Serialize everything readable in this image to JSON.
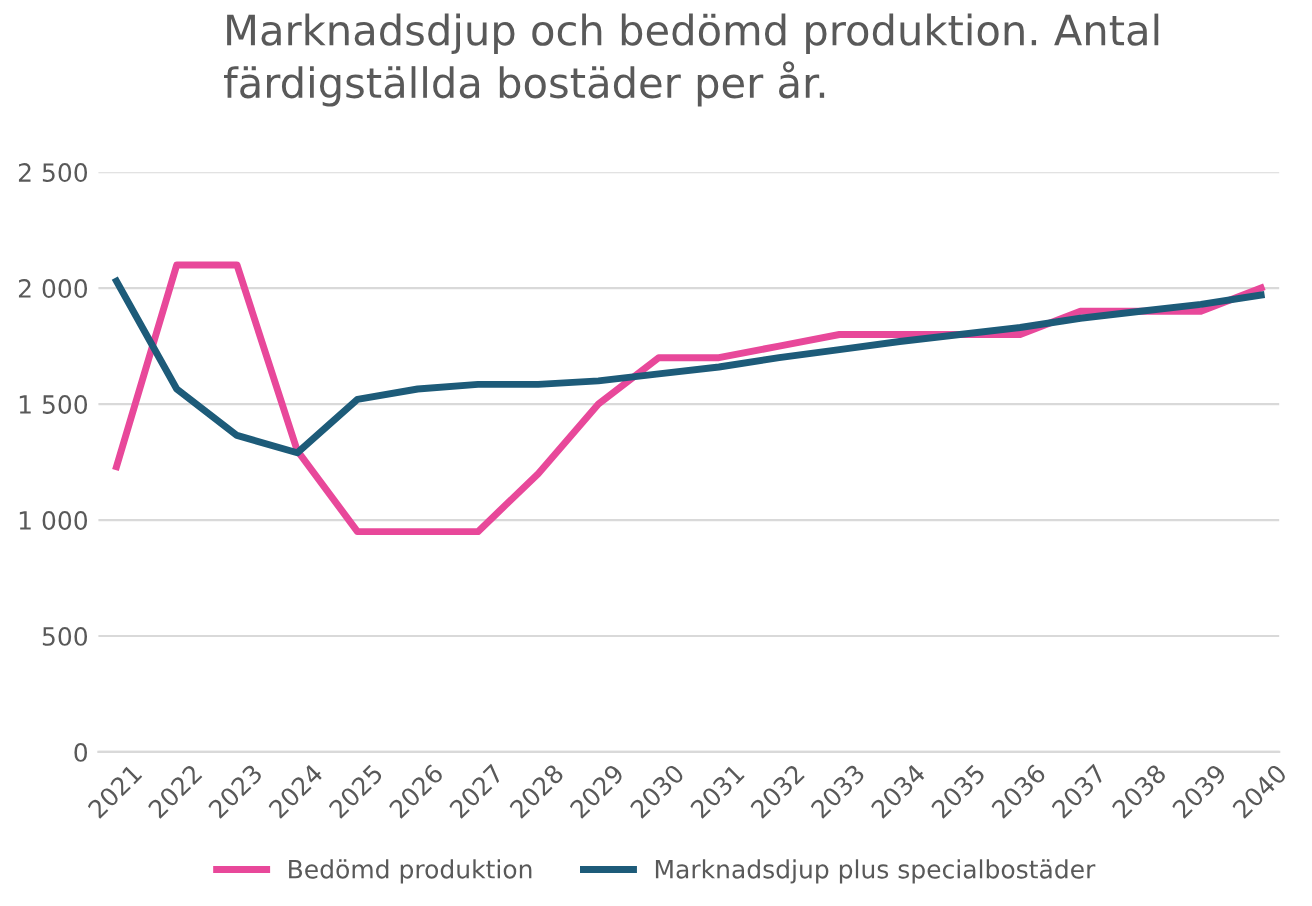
{
  "chart_data": {
    "type": "line",
    "title": "Marknadsdjup och bedömd produktion. Antal färdigställda bostäder per år.",
    "categories": [
      "2021",
      "2022",
      "2023",
      "2024",
      "2025",
      "2026",
      "2027",
      "2028",
      "2029",
      "2030",
      "2031",
      "2032",
      "2033",
      "2034",
      "2035",
      "2036",
      "2037",
      "2038",
      "2039",
      "2040"
    ],
    "series": [
      {
        "name": "Bedömd produktion",
        "color": "#e8489a",
        "values": [
          1230,
          2100,
          2100,
          1300,
          950,
          950,
          950,
          1200,
          1500,
          1700,
          1700,
          1750,
          1800,
          1800,
          1800,
          1800,
          1900,
          1900,
          1900,
          2000
        ]
      },
      {
        "name": "Marknadsdjup plus specialbostäder",
        "color": "#1d5b79",
        "values": [
          2030,
          1565,
          1365,
          1290,
          1520,
          1565,
          1585,
          1585,
          1600,
          1630,
          1660,
          1700,
          1735,
          1770,
          1800,
          1830,
          1870,
          1900,
          1930,
          1970
        ]
      }
    ],
    "ylim": [
      0,
      2500
    ],
    "yticks": [
      0,
      500,
      {
        "value": 1000,
        "label": "1 000"
      },
      {
        "value": 1500,
        "label": "1 500"
      },
      {
        "value": 2000,
        "label": "2 000"
      },
      {
        "value": 2500,
        "label": "2 500"
      }
    ],
    "grid": "y",
    "legend": "bottom",
    "marker": "none",
    "line_style": "solid"
  }
}
